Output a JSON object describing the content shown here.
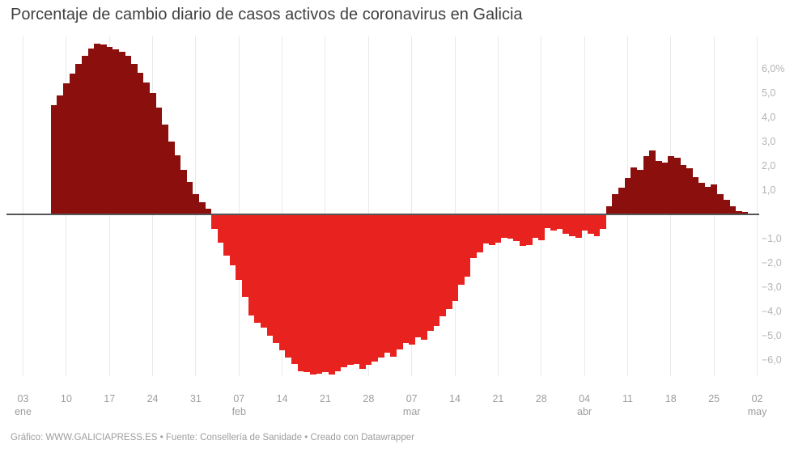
{
  "page": {
    "title": "Porcentaje de cambio diario de casos activos de coronavirus en Galicia",
    "footer": "Gráfico: WWW.GALICIAPRESS.ES • Fuente: Consellería de Sanidade • Creado con Datawrapper"
  },
  "chart_data": {
    "type": "bar",
    "title": "Porcentaje de cambio diario de casos activos de coronavirus en Galicia",
    "unit": "%",
    "ylim": [
      -7.0,
      7.3
    ],
    "grid": "vertical weekly gridlines only, dark zero baseline, no horizontal gridlines",
    "legend_position": "none",
    "colors": {
      "positive_bar": "#8B0F0C",
      "negative_bar": "#E8231F",
      "zero_line": "#555555",
      "gridline": "#E9E9E9",
      "tick_label_x": "#9D9D9D",
      "tick_label_y": "#B4B4B4"
    },
    "y_ticks": [
      {
        "value": 6,
        "label": "6,0%"
      },
      {
        "value": 5,
        "label": "5,0"
      },
      {
        "value": 4,
        "label": "4,0"
      },
      {
        "value": 3,
        "label": "3,0"
      },
      {
        "value": 2,
        "label": "2,0"
      },
      {
        "value": 1,
        "label": "1,0"
      },
      {
        "value": -1,
        "label": "−1,0"
      },
      {
        "value": -2,
        "label": "−2,0"
      },
      {
        "value": -3,
        "label": "−3,0"
      },
      {
        "value": -4,
        "label": "−4,0"
      },
      {
        "value": -5,
        "label": "−5,0"
      },
      {
        "value": -6,
        "label": "−6,0"
      }
    ],
    "x_ticks": [
      {
        "offset_days": 0,
        "label": "03",
        "month": "ene"
      },
      {
        "offset_days": 7,
        "label": "10"
      },
      {
        "offset_days": 14,
        "label": "17"
      },
      {
        "offset_days": 21,
        "label": "24"
      },
      {
        "offset_days": 28,
        "label": "31"
      },
      {
        "offset_days": 35,
        "label": "07",
        "month": "feb"
      },
      {
        "offset_days": 42,
        "label": "14"
      },
      {
        "offset_days": 49,
        "label": "21"
      },
      {
        "offset_days": 56,
        "label": "28"
      },
      {
        "offset_days": 63,
        "label": "07",
        "month": "mar"
      },
      {
        "offset_days": 70,
        "label": "14"
      },
      {
        "offset_days": 77,
        "label": "21"
      },
      {
        "offset_days": 84,
        "label": "28"
      },
      {
        "offset_days": 91,
        "label": "04",
        "month": "abr"
      },
      {
        "offset_days": 98,
        "label": "11"
      },
      {
        "offset_days": 105,
        "label": "18"
      },
      {
        "offset_days": 112,
        "label": "25"
      },
      {
        "offset_days": 119,
        "label": "02",
        "month": "may"
      }
    ],
    "series": [
      {
        "start_offset_days": 5,
        "values": [
          4.5,
          4.9,
          5.4,
          5.8,
          6.2,
          6.55,
          6.85,
          7.05,
          7.0,
          6.9,
          6.8,
          6.7,
          6.55,
          6.2,
          5.85,
          5.45,
          5.0,
          4.4,
          3.7,
          3.0,
          2.45,
          1.85,
          1.35,
          0.85,
          0.5,
          0.25,
          -0.6,
          -1.15,
          -1.7,
          -2.1,
          -2.7,
          -3.4,
          -4.15,
          -4.45,
          -4.65,
          -5.0,
          -5.3,
          -5.6,
          -5.9,
          -6.15,
          -6.45,
          -6.5,
          -6.6,
          -6.55,
          -6.5,
          -6.6,
          -6.45,
          -6.3,
          -6.2,
          -6.15,
          -6.35,
          -6.2,
          -6.05,
          -5.9,
          -5.7,
          -5.85,
          -5.55,
          -5.3,
          -5.35,
          -5.05,
          -5.15,
          -4.8,
          -4.6,
          -4.2,
          -3.9,
          -3.55,
          -2.9,
          -2.55,
          -1.8,
          -1.55,
          -1.2,
          -1.25,
          -1.15,
          -0.95,
          -1.0,
          -1.1,
          -1.3,
          -1.25,
          -0.95,
          -1.05,
          -0.55,
          -0.65,
          -0.6,
          -0.8,
          -0.9,
          -0.95,
          -0.65,
          -0.8,
          -0.9,
          -0.6,
          0.35,
          0.85,
          1.1,
          1.5,
          1.95,
          1.85,
          2.4,
          2.65,
          2.2,
          2.15,
          2.4,
          2.35,
          2.05,
          1.9,
          1.55,
          1.3,
          1.15,
          1.25,
          0.85,
          0.6,
          0.35,
          0.15,
          0.1,
          0.05
        ]
      }
    ]
  }
}
